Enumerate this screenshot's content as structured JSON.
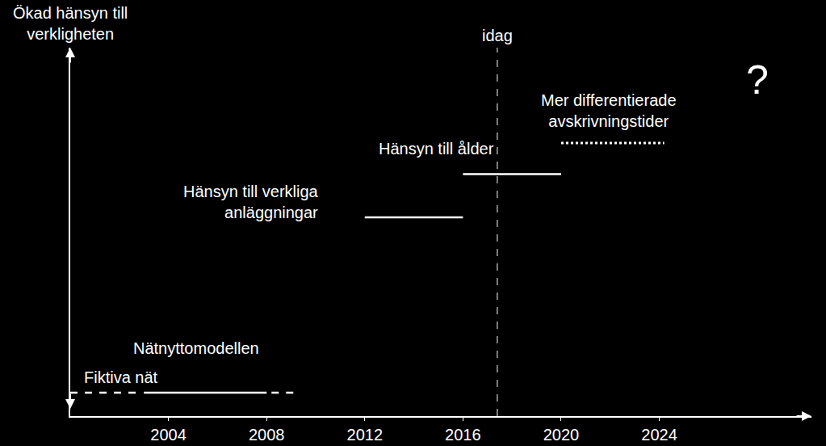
{
  "chart_data": {
    "type": "timeline",
    "ylabel": "Ökad hänsyn till verkligheten",
    "xlim": [
      2000,
      2030.2
    ],
    "xticks": [
      2004,
      2008,
      2012,
      2016,
      2020,
      2024
    ],
    "ylim": [
      0,
      10.2
    ],
    "yticks": [],
    "tick_labels": "x",
    "grid": false,
    "color": "#ffffff",
    "series": [
      {
        "name": "Fiktiva nät",
        "y": 0.65,
        "segments": [
          {
            "x": [
              2000,
              2002.9
            ],
            "line_style": "dashed"
          }
        ]
      },
      {
        "name": "Nätnyttomodellen",
        "y": 0.65,
        "segments": [
          {
            "x": [
              2003,
              2008
            ],
            "line_style": "solid"
          },
          {
            "x": [
              2008.2,
              2009.3
            ],
            "line_style": "dashed"
          }
        ]
      },
      {
        "name": "Hänsyn till verkliga anläggningar",
        "y": 5.5,
        "segments": [
          {
            "x": [
              2012,
              2016
            ],
            "line_style": "solid"
          }
        ]
      },
      {
        "name": "Hänsyn till ålder",
        "y": 6.7,
        "segments": [
          {
            "x": [
              2016,
              2020
            ],
            "line_style": "solid"
          }
        ]
      },
      {
        "name": "Mer differentierade avskrivningstider",
        "y": 7.56,
        "segments": [
          {
            "x": [
              2020,
              2024.2
            ],
            "line_style": "dotted"
          }
        ]
      }
    ],
    "markers": [
      {
        "x": 2017.4,
        "label": "idag",
        "line_style": "dashed"
      }
    ],
    "annotations": [
      {
        "x": 2028,
        "y": 9.3,
        "text": "?"
      }
    ]
  }
}
